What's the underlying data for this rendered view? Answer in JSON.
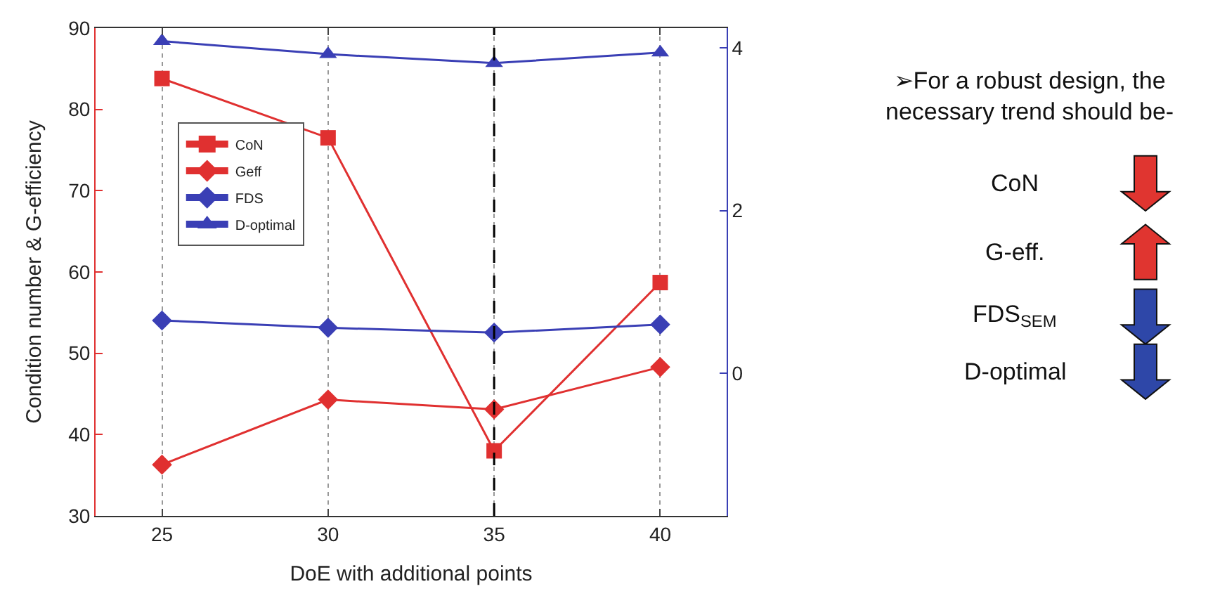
{
  "chart_data": {
    "type": "line",
    "xlabel": "DoE with additional points",
    "ylabel": "Condition number & G-efficiency",
    "x": [
      25,
      30,
      35,
      40
    ],
    "series": [
      {
        "name": "CoN",
        "color": "#e03030",
        "marker": "square",
        "values": [
          83.8,
          76.5,
          38,
          58.7
        ]
      },
      {
        "name": "Geff",
        "color": "#e03030",
        "marker": "diamond",
        "values": [
          36.3,
          44.3,
          43.1,
          48.3
        ]
      },
      {
        "name": "FDS",
        "color": "#3a3fb5",
        "marker": "diamond",
        "axis": "y2",
        "values": [
          0.65,
          0.56,
          0.5,
          0.6
        ]
      },
      {
        "name": "D-optimal",
        "color": "#3a3fb5",
        "marker": "triangle",
        "axis": "y2",
        "values": [
          4.08,
          3.92,
          3.81,
          3.94
        ]
      }
    ],
    "xlim": [
      23,
      42
    ],
    "xticks": [
      25,
      30,
      35,
      40
    ],
    "ylim": [
      30,
      90
    ],
    "yticks": [
      30,
      40,
      50,
      60,
      70,
      80,
      90
    ],
    "y2lim": [
      -1.75,
      4.24
    ],
    "y2ticks": [
      0,
      2,
      4
    ],
    "grid": "x",
    "legend": "left",
    "ref_lines": [
      {
        "axis": "x",
        "value": 35,
        "color": "#000000",
        "line_style": "dashed"
      }
    ],
    "annotations": [
      "➢For a robust design, the necessary trend should be-",
      "CoN",
      "G-eff.",
      "FDS$_{SEM}$",
      "D-optimal"
    ]
  }
}
